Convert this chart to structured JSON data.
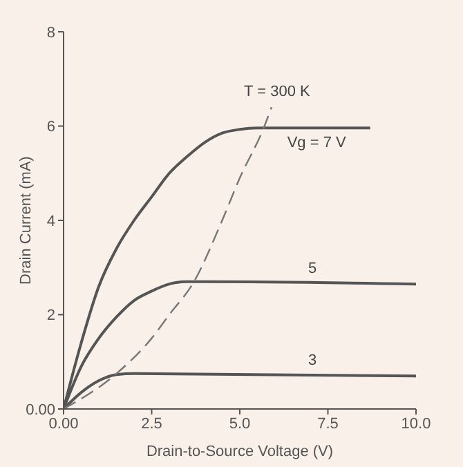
{
  "chart_data": {
    "type": "line",
    "xlabel": "Drain-to-Source Voltage (V)",
    "ylabel": "Drain Current (mA)",
    "xlim": [
      0,
      10
    ],
    "ylim": [
      0,
      8
    ],
    "xticks": [
      {
        "value": 0,
        "label": "0.00"
      },
      2.5,
      {
        "value": 5,
        "label": "5.0"
      },
      7.5,
      {
        "value": 10,
        "label": "10.0"
      }
    ],
    "yticks": [
      {
        "value": 0,
        "label": "0.00"
      },
      2,
      4,
      6,
      8
    ],
    "grid": false,
    "legend": false,
    "marker": "none",
    "series": [
      {
        "name": "Vg = 7 V",
        "color": "#555555",
        "x": [
          0,
          0.5,
          1,
          1.5,
          2,
          2.5,
          3,
          3.5,
          4,
          4.5,
          5,
          5.5,
          6,
          7,
          8.7
        ],
        "values": [
          0,
          1.4,
          2.6,
          3.4,
          4.0,
          4.5,
          5.0,
          5.35,
          5.65,
          5.85,
          5.93,
          5.96,
          5.96,
          5.96,
          5.96
        ]
      },
      {
        "name": "5",
        "color": "#555555",
        "x": [
          0,
          0.5,
          1,
          1.5,
          2,
          2.5,
          3,
          3.5,
          4,
          10
        ],
        "values": [
          0,
          0.9,
          1.5,
          1.95,
          2.3,
          2.5,
          2.65,
          2.7,
          2.7,
          2.65
        ]
      },
      {
        "name": "3",
        "color": "#555555",
        "x": [
          0,
          0.5,
          1,
          1.5,
          2,
          10
        ],
        "values": [
          0,
          0.35,
          0.6,
          0.73,
          0.75,
          0.7
        ]
      },
      {
        "name": "T = 300 K",
        "color": "#777777",
        "line_style": "dashed",
        "x": [
          0,
          1.5,
          2.5,
          3,
          3.7,
          4.5,
          5,
          5.7,
          5.9
        ],
        "values": [
          0,
          0.75,
          1.5,
          2,
          2.7,
          4,
          4.9,
          6,
          6.4
        ]
      }
    ]
  }
}
